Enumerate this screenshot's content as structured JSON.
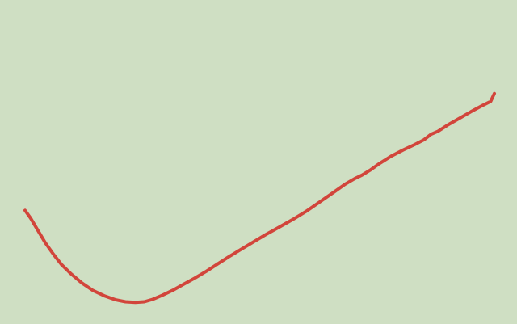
{
  "chart_data": {
    "type": "line",
    "title": "",
    "xlabel": "",
    "ylabel": "",
    "grid": false,
    "axes_visible": false,
    "legend": "none",
    "xlim": [
      0,
      100
    ],
    "ylim": [
      0,
      100
    ],
    "series": [
      {
        "color": "#d2453b",
        "points": [
          [
            0.0,
            40.2
          ],
          [
            1.2,
            37.6
          ],
          [
            2.6,
            34.0
          ],
          [
            4.3,
            29.6
          ],
          [
            6.0,
            25.9
          ],
          [
            7.8,
            22.4
          ],
          [
            9.8,
            19.4
          ],
          [
            12.1,
            16.4
          ],
          [
            14.5,
            13.9
          ],
          [
            17.0,
            12.1
          ],
          [
            19.2,
            10.9
          ],
          [
            21.4,
            10.2
          ],
          [
            23.5,
            10.0
          ],
          [
            25.4,
            10.2
          ],
          [
            27.2,
            11.0
          ],
          [
            29.3,
            12.4
          ],
          [
            31.5,
            14.0
          ],
          [
            33.8,
            16.0
          ],
          [
            36.2,
            18.0
          ],
          [
            38.6,
            20.2
          ],
          [
            41.0,
            22.6
          ],
          [
            43.4,
            25.0
          ],
          [
            46.0,
            27.4
          ],
          [
            48.7,
            29.9
          ],
          [
            51.2,
            32.2
          ],
          [
            54.0,
            34.6
          ],
          [
            57.0,
            37.2
          ],
          [
            60.0,
            40.0
          ],
          [
            63.0,
            43.2
          ],
          [
            65.8,
            46.2
          ],
          [
            68.2,
            48.8
          ],
          [
            70.2,
            50.6
          ],
          [
            71.8,
            51.8
          ],
          [
            73.5,
            53.4
          ],
          [
            75.5,
            55.6
          ],
          [
            78.0,
            58.0
          ],
          [
            80.5,
            60.0
          ],
          [
            83.0,
            61.8
          ],
          [
            85.0,
            63.4
          ],
          [
            86.5,
            65.2
          ],
          [
            88.0,
            66.2
          ],
          [
            90.0,
            68.2
          ],
          [
            92.5,
            70.4
          ],
          [
            95.0,
            72.6
          ],
          [
            97.5,
            74.7
          ],
          [
            99.2,
            76.0
          ],
          [
            99.6,
            77.3
          ],
          [
            100.0,
            78.6
          ]
        ]
      }
    ]
  }
}
